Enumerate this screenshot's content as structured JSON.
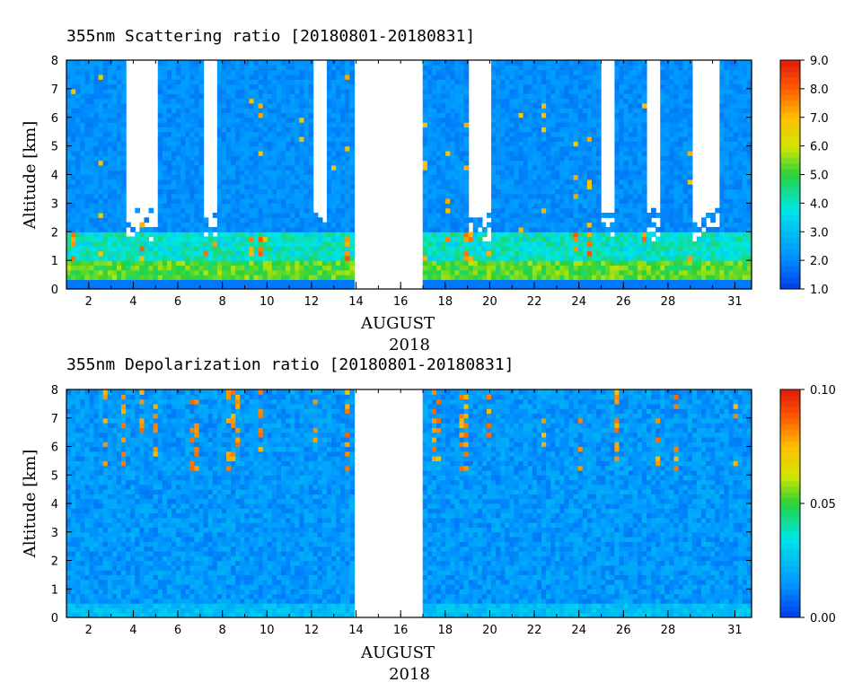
{
  "chart_data": [
    {
      "type": "heatmap",
      "title": "355nm Scattering ratio [20180801-20180831]",
      "ylabel": "Altitude [km]",
      "xlabel": "AUGUST",
      "xlabel2": "2018",
      "xlim": [
        1,
        31.75
      ],
      "ylim": [
        0,
        8
      ],
      "x_ticks": [
        2,
        4,
        6,
        8,
        10,
        12,
        14,
        16,
        18,
        20,
        22,
        24,
        26,
        28,
        31
      ],
      "y_ticks": [
        0,
        1,
        2,
        3,
        4,
        5,
        6,
        7,
        8
      ],
      "colorbar": {
        "range": [
          1.0,
          9.0
        ],
        "labels": [
          "1.0",
          "2.0",
          "3.0",
          "4.0",
          "5.0",
          "6.0",
          "7.0",
          "8.0",
          "9.0"
        ],
        "label_values": [
          1,
          2,
          3,
          4,
          5,
          6,
          7,
          8,
          9
        ]
      },
      "data_gaps": [
        [
          13.95,
          16.8
        ]
      ],
      "cloud_free_gaps": [
        [
          3.5,
          5.1
        ],
        [
          7.0,
          7.6
        ],
        [
          12.0,
          12.6
        ],
        [
          19.0,
          20.0
        ],
        [
          24.9,
          25.4
        ],
        [
          26.9,
          27.5
        ],
        [
          29.0,
          30.2
        ]
      ],
      "typical_values": {
        "aerosol_layer_0_1km": 5.0,
        "clear_air": 1.8,
        "clouds": 8.5
      }
    },
    {
      "type": "heatmap",
      "title": "355nm Depolarization ratio [20180801-20180831]",
      "ylabel": "Altitude [km]",
      "xlabel": "AUGUST",
      "xlabel2": "2018",
      "xlim": [
        1,
        31.75
      ],
      "ylim": [
        0,
        8
      ],
      "x_ticks": [
        2,
        4,
        6,
        8,
        10,
        12,
        14,
        16,
        18,
        20,
        22,
        24,
        26,
        28,
        31
      ],
      "y_ticks": [
        0,
        1,
        2,
        3,
        4,
        5,
        6,
        7,
        8
      ],
      "colorbar": {
        "range": [
          0.0,
          0.1
        ],
        "labels": [
          "0.00",
          "0.05",
          "0.10"
        ],
        "label_values": [
          0,
          0.05,
          0.1
        ]
      },
      "data_gaps": [
        [
          13.95,
          16.8
        ]
      ],
      "typical_values": {
        "background": 0.015,
        "clouds": 0.09
      }
    }
  ]
}
